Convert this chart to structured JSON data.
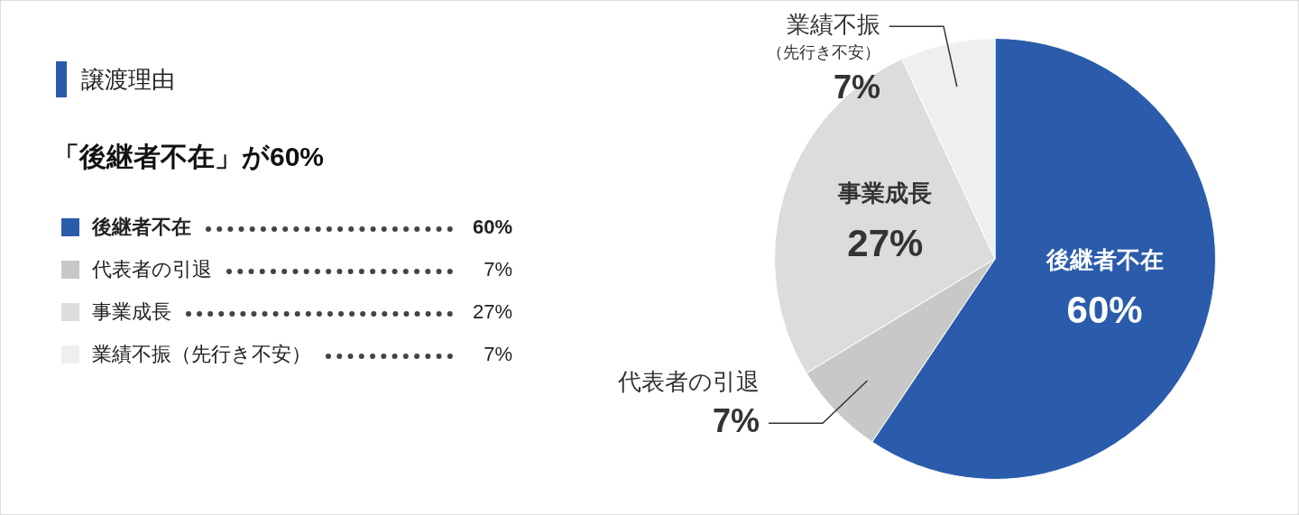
{
  "chart_data": {
    "type": "pie",
    "title": "譲渡理由",
    "subtitle": "「後継者不在」が60%",
    "legend": "left",
    "categories": [
      "後継者不在",
      "代表者の引退",
      "事業成長",
      "業績不振（先行き不安）"
    ],
    "values": [
      60,
      7,
      27,
      7
    ],
    "colors": [
      "#2b5cab",
      "#c8c8c8",
      "#dcdcdc",
      "#efefef"
    ],
    "value_labels": [
      "60%",
      "7%",
      "27%",
      "7%"
    ]
  }
}
